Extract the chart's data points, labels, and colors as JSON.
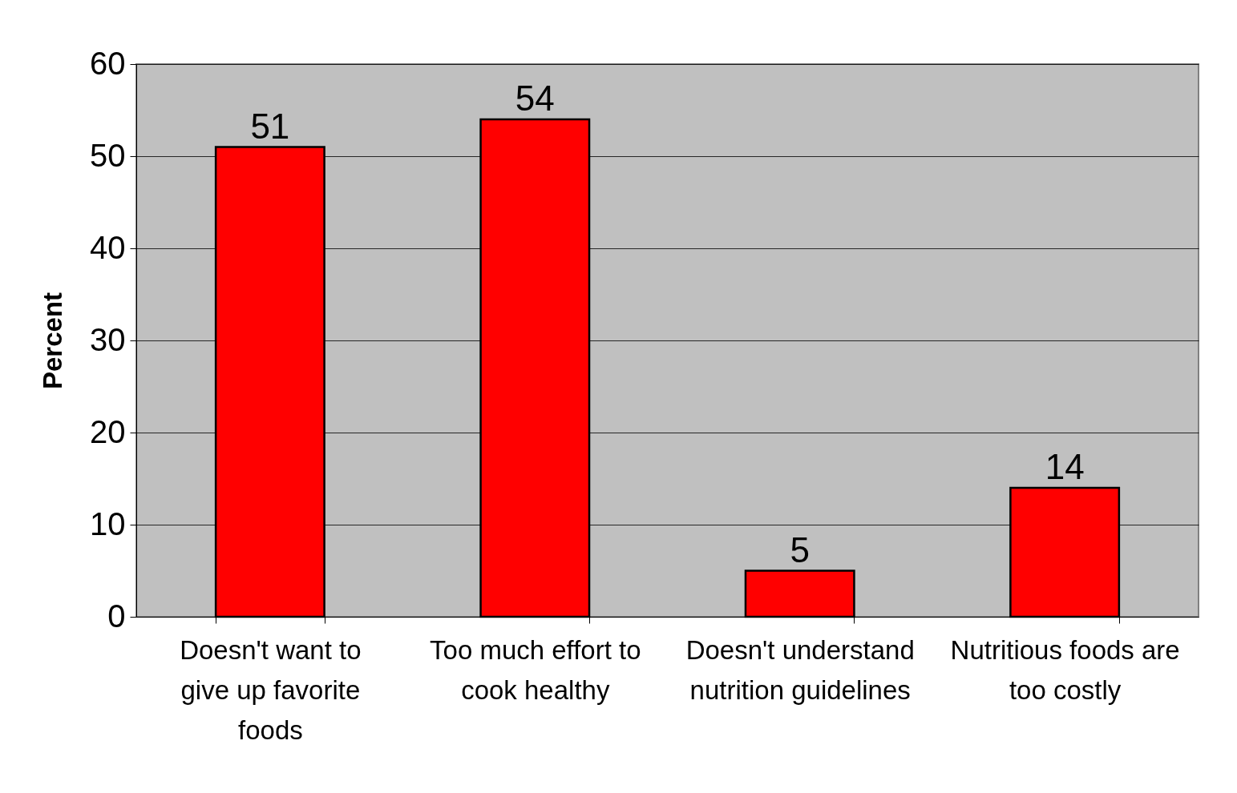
{
  "chart_data": {
    "type": "bar",
    "ylabel": "Percent",
    "categories": [
      "Doesn't want to\ngive up favorite\nfoods",
      "Too much effort to\ncook healthy",
      "Doesn't understand\nnutrition guidelines",
      "Nutritious foods are\ntoo costly"
    ],
    "values": [
      51,
      54,
      5,
      14
    ],
    "color": "#ff0000",
    "ylim": [
      0,
      60
    ],
    "yticks": [
      0,
      10,
      20,
      30,
      40,
      50,
      60
    ],
    "grid": "y",
    "data_labels": true
  }
}
